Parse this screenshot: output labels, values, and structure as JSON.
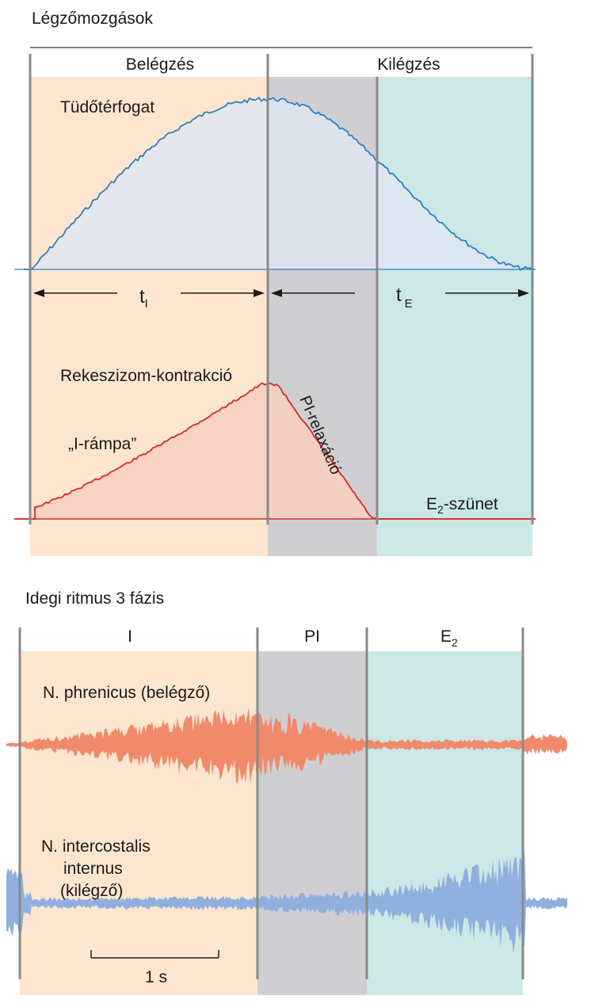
{
  "top_panel": {
    "title": "Légzőmozgások",
    "phase_inspiration": "Belégzés",
    "phase_expiration": "Kilégzés",
    "volume_label": "Tüdőtérfogat",
    "t_i_main": "t",
    "t_i_sub": "I",
    "t_e_main": "t",
    "t_e_sub": "E",
    "diaphragm_label": "Rekeszizom-kontrakció",
    "ramp_label": "„I-rámpa”",
    "pi_relax_label": "PI-relaxáció",
    "e2_pause_main": "E",
    "e2_pause_sub": "2",
    "e2_pause_rest": "-szünet"
  },
  "bottom_panel": {
    "title": "Idegi ritmus 3 fázis",
    "phase_i": "I",
    "phase_pi": "PI",
    "phase_e2_main": "E",
    "phase_e2_sub": "2",
    "phrenic_label": "N. phrenicus (belégző)",
    "intercostal_line1": "N. intercostalis",
    "intercostal_line2": "internus",
    "intercostal_line3": "(kilégző)",
    "scale_label": "1 s"
  },
  "colors": {
    "inspiration_bg": "#fde6cf",
    "post_inspiration_bg": "#cfcfd2",
    "expiration_bg": "#cbe8e6",
    "volume_line": "#2f7fc0",
    "volume_fill": "#dfe6f2",
    "diaphragm_line": "#d62a2a",
    "diaphragm_fill": "#f7cfc0",
    "phrenic_signal": "#f08a6a",
    "intercostal_signal": "#8fb0de",
    "divider": "#8a8a8a"
  }
}
